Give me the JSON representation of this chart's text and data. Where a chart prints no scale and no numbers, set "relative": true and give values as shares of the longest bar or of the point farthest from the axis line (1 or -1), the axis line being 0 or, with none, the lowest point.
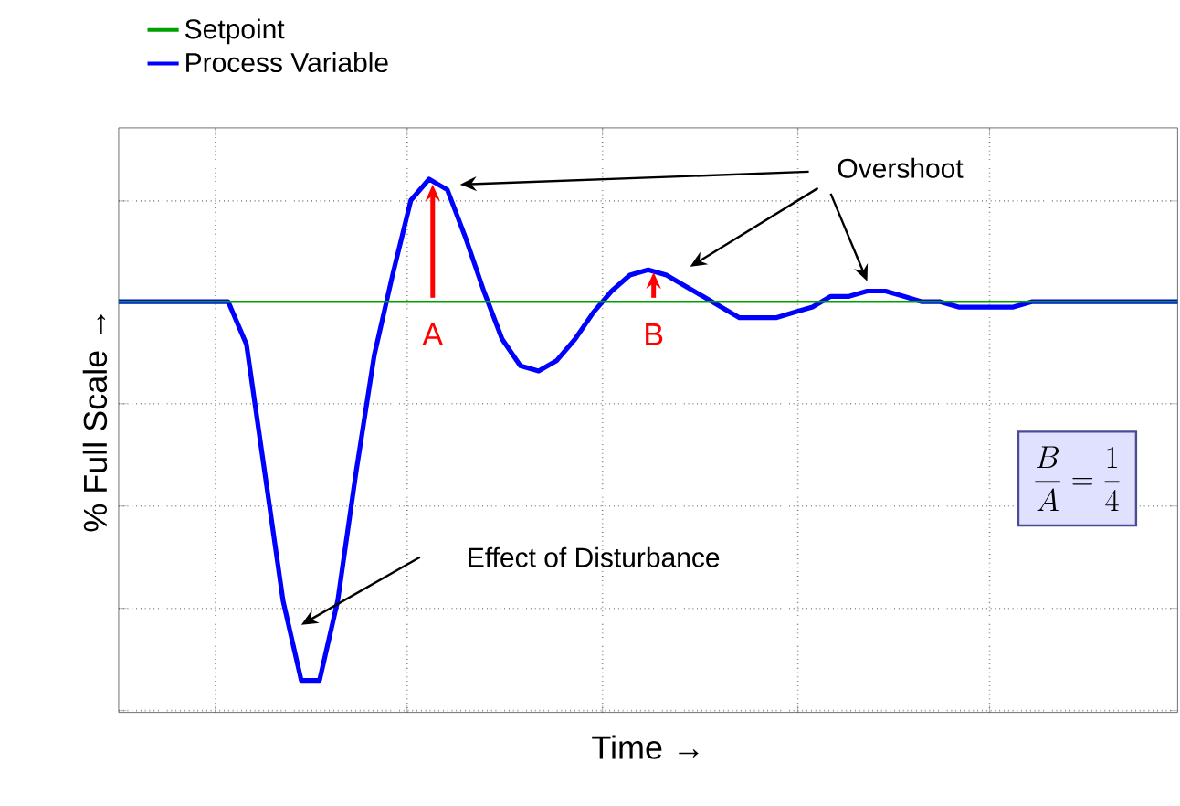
{
  "chart_data": {
    "type": "line",
    "relative": true,
    "xlabel": "Time →",
    "ylabel": "% Full Scale →",
    "grid": true,
    "legend": "top left",
    "categories": [
      null,
      null,
      null,
      null,
      null,
      null,
      null,
      null,
      null,
      null,
      null,
      null,
      null,
      null,
      null,
      null,
      null,
      null,
      null,
      null,
      null,
      null,
      null,
      null,
      null,
      null,
      null,
      null,
      null,
      null,
      null,
      null,
      null,
      null,
      null,
      null,
      null,
      null,
      null,
      null,
      null,
      null,
      null,
      null,
      null,
      null,
      null,
      null,
      null,
      null,
      null,
      null,
      null,
      null,
      null,
      null,
      null,
      null,
      null
    ],
    "series": [
      {
        "name": "Setpoint",
        "color": "#00a000",
        "values": [
          0.77,
          0.77,
          0.77,
          0.77,
          0.77,
          0.77,
          0.77,
          0.77,
          0.77,
          0.77,
          0.77,
          0.77,
          0.77,
          0.77,
          0.77,
          0.77,
          0.77,
          0.77,
          0.77,
          0.77,
          0.77,
          0.77,
          0.77,
          0.77,
          0.77,
          0.77,
          0.77,
          0.77,
          0.77,
          0.77,
          0.77,
          0.77,
          0.77,
          0.77,
          0.77,
          0.77,
          0.77,
          0.77,
          0.77,
          0.77,
          0.77,
          0.77,
          0.77,
          0.77,
          0.77,
          0.77,
          0.77,
          0.77,
          0.77,
          0.77,
          0.77,
          0.77,
          0.77,
          0.77,
          0.77,
          0.77,
          0.77,
          0.77,
          0.77
        ]
      },
      {
        "name": "Process Variable",
        "color": "#0000ff",
        "values": [
          0.77,
          0.77,
          0.77,
          0.77,
          0.77,
          0.77,
          0.77,
          0.69,
          0.45,
          0.21,
          0.06,
          0.06,
          0.21,
          0.45,
          0.67,
          0.82,
          0.96,
          1.0,
          0.98,
          0.89,
          0.79,
          0.7,
          0.65,
          0.64,
          0.66,
          0.7,
          0.75,
          0.79,
          0.82,
          0.83,
          0.82,
          0.8,
          0.78,
          0.76,
          0.74,
          0.74,
          0.74,
          0.75,
          0.76,
          0.78,
          0.78,
          0.79,
          0.79,
          0.78,
          0.77,
          0.77,
          0.76,
          0.76,
          0.76,
          0.76,
          0.77,
          0.77,
          0.77,
          0.77,
          0.77,
          0.77,
          0.77,
          0.77,
          0.77
        ]
      }
    ],
    "annotations": [
      "Overshoot",
      "A",
      "B",
      "Effect of Disturbance",
      "\\frac{B}{A}=\\frac{1}{4}"
    ]
  }
}
